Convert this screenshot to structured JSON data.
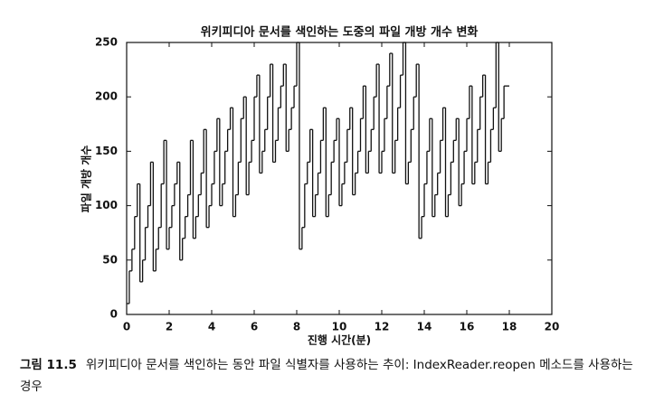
{
  "chart_data": {
    "type": "step",
    "title": "위키피디아 문서를 색인하는 도중의 파일 개방 개수 변화",
    "xlabel": "진행 시간(분)",
    "ylabel": "파일 개방 개수",
    "caption_label": "그림 11.5",
    "caption": "위키피디아 문서를 색인하는 동안 파일 식별자를 사용하는 추이: IndexReader.reopen 메소드를 사용하는 경우",
    "color": "#111111",
    "xlim": [
      0,
      20
    ],
    "xticks": [
      0,
      2,
      4,
      6,
      8,
      10,
      12,
      14,
      16,
      18,
      20
    ],
    "ylim": [
      0,
      250
    ],
    "yticks": [
      0,
      50,
      100,
      150,
      200,
      250
    ],
    "x": [
      0,
      0.125,
      0.25,
      0.375,
      0.5,
      0.625,
      0.75,
      0.875,
      1,
      1.125,
      1.25,
      1.375,
      1.5,
      1.625,
      1.75,
      1.875,
      2,
      2.125,
      2.25,
      2.375,
      2.5,
      2.625,
      2.75,
      2.875,
      3,
      3.125,
      3.25,
      3.375,
      3.5,
      3.625,
      3.75,
      3.875,
      4,
      4.125,
      4.25,
      4.375,
      4.5,
      4.625,
      4.75,
      4.875,
      5,
      5.125,
      5.25,
      5.375,
      5.5,
      5.625,
      5.75,
      5.875,
      6,
      6.125,
      6.25,
      6.375,
      6.5,
      6.625,
      6.75,
      6.875,
      7,
      7.125,
      7.25,
      7.375,
      7.5,
      7.625,
      7.75,
      7.875,
      8,
      8.125,
      8.25,
      8.375,
      8.5,
      8.625,
      8.75,
      8.875,
      9,
      9.125,
      9.25,
      9.375,
      9.5,
      9.625,
      9.75,
      9.875,
      10,
      10.125,
      10.25,
      10.375,
      10.5,
      10.625,
      10.75,
      10.875,
      11,
      11.125,
      11.25,
      11.375,
      11.5,
      11.625,
      11.75,
      11.875,
      12,
      12.125,
      12.25,
      12.375,
      12.5,
      12.625,
      12.75,
      12.875,
      13,
      13.125,
      13.25,
      13.375,
      13.5,
      13.625,
      13.75,
      13.875,
      14,
      14.125,
      14.25,
      14.375,
      14.5,
      14.625,
      14.75,
      14.875,
      15,
      15.125,
      15.25,
      15.375,
      15.5,
      15.625,
      15.75,
      15.875,
      16,
      16.125,
      16.25,
      16.375,
      16.5,
      16.625,
      16.75,
      16.875,
      17,
      17.125,
      17.25,
      17.375,
      17.5,
      17.625,
      17.75,
      18
    ],
    "values": [
      10,
      40,
      60,
      90,
      120,
      30,
      50,
      80,
      100,
      140,
      40,
      60,
      80,
      120,
      160,
      60,
      80,
      100,
      120,
      140,
      50,
      70,
      90,
      110,
      160,
      70,
      90,
      110,
      130,
      170,
      80,
      100,
      120,
      150,
      180,
      100,
      120,
      150,
      170,
      190,
      90,
      110,
      140,
      180,
      200,
      110,
      140,
      160,
      200,
      220,
      130,
      150,
      170,
      200,
      230,
      140,
      160,
      190,
      210,
      230,
      150,
      170,
      190,
      210,
      250,
      60,
      80,
      120,
      140,
      170,
      90,
      110,
      130,
      160,
      190,
      90,
      110,
      140,
      160,
      180,
      100,
      120,
      140,
      170,
      190,
      110,
      130,
      150,
      180,
      210,
      130,
      150,
      170,
      200,
      230,
      130,
      150,
      180,
      210,
      240,
      130,
      160,
      190,
      220,
      250,
      120,
      140,
      170,
      200,
      230,
      70,
      90,
      120,
      150,
      180,
      90,
      110,
      130,
      160,
      190,
      90,
      110,
      140,
      160,
      180,
      100,
      120,
      150,
      180,
      210,
      120,
      140,
      170,
      200,
      220,
      120,
      140,
      170,
      190,
      250,
      150,
      180,
      210,
      210
    ]
  }
}
